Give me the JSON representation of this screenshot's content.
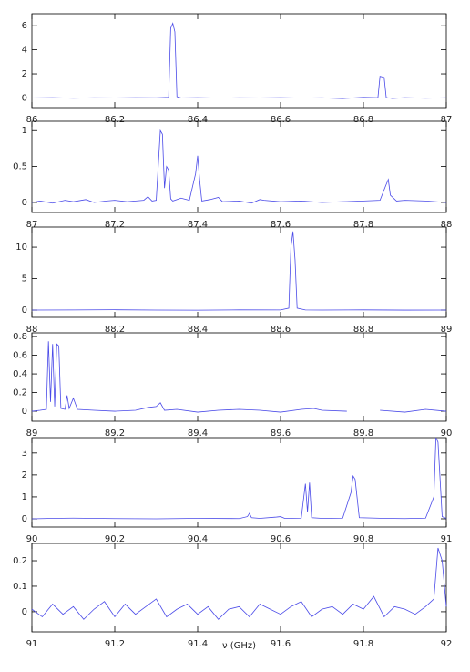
{
  "chart_data": [
    {
      "type": "line",
      "color": "#4a4ae8",
      "x": [
        86,
        86.05,
        86.1,
        86.15,
        86.2,
        86.25,
        86.3,
        86.33,
        86.335,
        86.34,
        86.345,
        86.35,
        86.36,
        86.4,
        86.45,
        86.5,
        86.55,
        86.6,
        86.65,
        86.7,
        86.75,
        86.8,
        86.835,
        86.84,
        86.85,
        86.855,
        86.87,
        86.9,
        86.95,
        87
      ],
      "values": [
        0,
        0.02,
        -0.02,
        0.01,
        0,
        0.02,
        0.01,
        0.05,
        5.8,
        6.2,
        5.5,
        0.1,
        0,
        0.02,
        -0.01,
        0.01,
        0,
        0.02,
        -0.01,
        0.01,
        -0.05,
        0.05,
        0.02,
        1.8,
        1.7,
        0.03,
        -0.04,
        0.02,
        -0.02,
        0.01
      ],
      "xlim": [
        86,
        87
      ],
      "ylim": [
        -0.8,
        7
      ],
      "xticks": [
        86,
        86.2,
        86.4,
        86.6,
        86.8,
        87
      ],
      "yticks": [
        0,
        2,
        4,
        6
      ]
    },
    {
      "type": "line",
      "color": "#4a4ae8",
      "x": [
        87,
        87.02,
        87.05,
        87.08,
        87.1,
        87.13,
        87.15,
        87.18,
        87.2,
        87.23,
        87.25,
        87.27,
        87.28,
        87.29,
        87.3,
        87.31,
        87.315,
        87.32,
        87.325,
        87.33,
        87.335,
        87.34,
        87.36,
        87.38,
        87.395,
        87.4,
        87.405,
        87.41,
        87.43,
        87.45,
        87.46,
        87.5,
        87.53,
        87.55,
        87.56,
        87.6,
        87.65,
        87.7,
        87.75,
        87.8,
        87.84,
        87.855,
        87.86,
        87.865,
        87.88,
        87.9,
        87.95,
        88
      ],
      "values": [
        0,
        0.02,
        -0.01,
        0.03,
        0.01,
        0.04,
        0,
        0.02,
        0.03,
        0.01,
        0.02,
        0.03,
        0.08,
        0.02,
        0.03,
        1.0,
        0.95,
        0.2,
        0.5,
        0.45,
        0.05,
        0.02,
        0.06,
        0.03,
        0.4,
        0.65,
        0.3,
        0.02,
        0.04,
        0.07,
        0.01,
        0.02,
        -0.01,
        0.04,
        0.03,
        0.01,
        0.02,
        0,
        0.01,
        0.02,
        0.03,
        0.25,
        0.32,
        0.1,
        0.02,
        0.03,
        0.02,
        0
      ],
      "xlim": [
        87,
        88
      ],
      "ylim": [
        -0.14,
        1.13
      ],
      "xticks": [
        87,
        87.2,
        87.4,
        87.6,
        87.8,
        88
      ],
      "yticks": [
        0,
        0.5,
        1
      ]
    },
    {
      "type": "line",
      "color": "#4a4ae8",
      "x": [
        88,
        88.1,
        88.2,
        88.3,
        88.4,
        88.5,
        88.6,
        88.62,
        88.625,
        88.63,
        88.635,
        88.64,
        88.66,
        88.7,
        88.8,
        88.9,
        89
      ],
      "values": [
        0,
        0.02,
        0.05,
        0,
        -0.02,
        0.03,
        0.02,
        0.3,
        10,
        12.5,
        8,
        0.3,
        0.02,
        0,
        0.03,
        -0.01,
        0
      ],
      "xlim": [
        88,
        89
      ],
      "ylim": [
        -1.16,
        13.2
      ],
      "xticks": [
        88,
        88.2,
        88.4,
        88.6,
        88.8,
        89
      ],
      "yticks": [
        0,
        5,
        10
      ]
    },
    {
      "type": "line",
      "color": "#4a4ae8",
      "x": [
        89,
        89.02,
        89.035,
        89.04,
        89.045,
        89.05,
        89.055,
        89.06,
        89.065,
        89.07,
        89.08,
        89.085,
        89.09,
        89.1,
        89.11,
        89.15,
        89.2,
        89.25,
        89.28,
        89.3,
        89.31,
        89.32,
        89.35,
        89.4,
        89.45,
        89.5,
        89.55,
        89.6,
        89.65,
        89.68,
        89.7,
        89.76,
        89.8,
        89.84,
        89.9,
        89.95,
        90
      ],
      "values": [
        0,
        0.01,
        0.02,
        0.75,
        0.1,
        0.72,
        0.05,
        0.72,
        0.7,
        0.03,
        0.02,
        0.17,
        0.03,
        0.14,
        0.02,
        0.01,
        0,
        0.01,
        0.04,
        0.05,
        0.09,
        0.01,
        0.02,
        -0.01,
        0.01,
        0.02,
        0.01,
        -0.01,
        0.02,
        0.03,
        0.01,
        0,
        null,
        0.01,
        -0.01,
        0.02,
        0
      ],
      "xlim": [
        89,
        90
      ],
      "ylim": [
        -0.107,
        0.84
      ],
      "xticks": [
        89,
        89.2,
        89.4,
        89.6,
        89.8,
        90
      ],
      "yticks": [
        0,
        0.2,
        0.4,
        0.6,
        0.8
      ]
    },
    {
      "type": "line",
      "color": "#4a4ae8",
      "x": [
        90,
        90.05,
        90.1,
        90.2,
        90.3,
        90.4,
        90.5,
        90.52,
        90.525,
        90.53,
        90.55,
        90.59,
        90.6,
        90.61,
        90.65,
        90.66,
        90.665,
        90.67,
        90.675,
        90.7,
        90.75,
        90.77,
        90.775,
        90.78,
        90.79,
        90.85,
        90.9,
        90.95,
        90.97,
        90.975,
        90.98,
        90.99,
        91
      ],
      "values": [
        0,
        0.02,
        0.03,
        0.01,
        0,
        0.02,
        0.01,
        0.1,
        0.25,
        0.05,
        0.02,
        0.08,
        0.1,
        0.02,
        0.03,
        1.6,
        0.3,
        1.65,
        0.05,
        0.02,
        0.03,
        1.2,
        1.95,
        1.8,
        0.05,
        0.02,
        0.01,
        0.03,
        1.0,
        3.7,
        3.5,
        0.1,
        0.02
      ],
      "xlim": [
        90,
        91
      ],
      "ylim": [
        -0.375,
        3.7
      ],
      "xticks": [
        90,
        90.2,
        90.4,
        90.6,
        90.8,
        91
      ],
      "yticks": [
        0,
        1,
        2,
        3
      ]
    },
    {
      "type": "line",
      "color": "#4a4ae8",
      "xlabel": "ν (GHz)",
      "x": [
        91,
        91.025,
        91.05,
        91.075,
        91.1,
        91.125,
        91.15,
        91.175,
        91.2,
        91.225,
        91.25,
        91.275,
        91.3,
        91.325,
        91.35,
        91.375,
        91.4,
        91.425,
        91.45,
        91.475,
        91.5,
        91.525,
        91.55,
        91.575,
        91.6,
        91.625,
        91.65,
        91.675,
        91.7,
        91.725,
        91.75,
        91.775,
        91.8,
        91.825,
        91.85,
        91.875,
        91.9,
        91.925,
        91.95,
        91.97,
        91.98,
        91.99,
        92
      ],
      "values": [
        0.01,
        -0.02,
        0.03,
        -0.01,
        0.02,
        -0.03,
        0.01,
        0.04,
        -0.02,
        0.03,
        -0.01,
        0.02,
        0.05,
        -0.02,
        0.01,
        0.03,
        -0.01,
        0.02,
        -0.03,
        0.01,
        0.02,
        -0.02,
        0.03,
        0.01,
        -0.01,
        0.02,
        0.04,
        -0.02,
        0.01,
        0.02,
        -0.01,
        0.03,
        0.01,
        0.06,
        -0.02,
        0.02,
        0.01,
        -0.01,
        0.02,
        0.05,
        0.25,
        0.2,
        0.02
      ],
      "xlim": [
        91,
        92
      ],
      "ylim": [
        -0.079,
        0.268
      ],
      "xticks": [
        91,
        91.2,
        91.4,
        91.6,
        91.8,
        92
      ],
      "yticks": [
        0,
        0.1,
        0.2
      ]
    }
  ]
}
